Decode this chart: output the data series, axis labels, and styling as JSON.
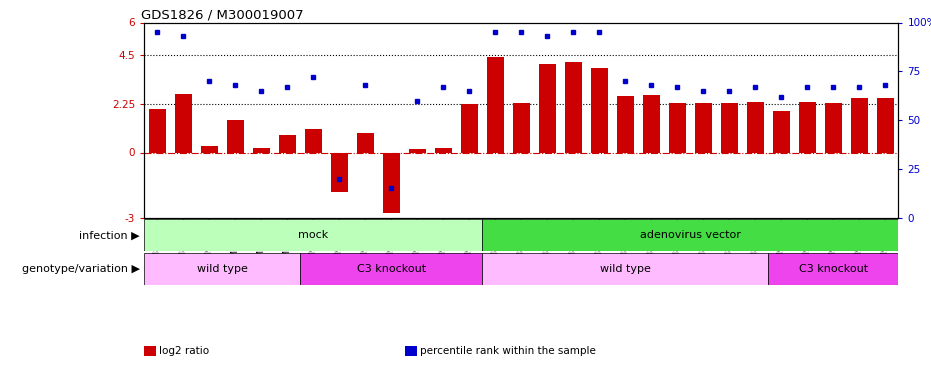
{
  "title": "GDS1826 / M300019007",
  "samples": [
    "GSM87316",
    "GSM87317",
    "GSM93998",
    "GSM93999",
    "GSM94000",
    "GSM94001",
    "GSM93633",
    "GSM93634",
    "GSM93651",
    "GSM93652",
    "GSM93653",
    "GSM93654",
    "GSM93657",
    "GSM86643",
    "GSM87306",
    "GSM87307",
    "GSM87308",
    "GSM87309",
    "GSM87310",
    "GSM87311",
    "GSM87312",
    "GSM87313",
    "GSM87314",
    "GSM87315",
    "GSM93655",
    "GSM93656",
    "GSM93658",
    "GSM93659",
    "GSM93660"
  ],
  "log2_ratio": [
    2.0,
    2.7,
    0.3,
    1.5,
    0.2,
    0.8,
    1.1,
    -1.8,
    0.9,
    -2.8,
    0.15,
    0.2,
    2.25,
    4.4,
    2.3,
    4.1,
    4.2,
    3.9,
    2.6,
    2.65,
    2.3,
    2.3,
    2.3,
    2.35,
    1.9,
    2.35,
    2.3,
    2.5,
    2.5
  ],
  "percentile_rank": [
    95,
    93,
    70,
    68,
    65,
    67,
    72,
    20,
    68,
    15,
    60,
    67,
    65,
    95,
    95,
    93,
    95,
    95,
    70,
    68,
    67,
    65,
    65,
    67,
    62,
    67,
    67,
    67,
    68
  ],
  "bar_color": "#cc0000",
  "dot_color": "#0000cc",
  "ylim": [
    -3,
    6
  ],
  "yticks_left": [
    -3,
    0,
    2.25,
    4.5,
    6
  ],
  "ytick_labels_left": [
    "-3",
    "0",
    "2.25",
    "4.5",
    "6"
  ],
  "yticks_right": [
    0,
    25,
    50,
    75,
    100
  ],
  "ytick_labels_right": [
    "0",
    "25",
    "50",
    "75",
    "100%"
  ],
  "hline_y": [
    2.25,
    4.5
  ],
  "hline_style": "dotted",
  "hline_color": "black",
  "zero_line_color": "#cc0000",
  "zero_line_style": "dashdot",
  "infection_groups": [
    {
      "label": "mock",
      "start": 0,
      "end": 13,
      "color": "#bbffbb"
    },
    {
      "label": "adenovirus vector",
      "start": 13,
      "end": 29,
      "color": "#44dd44"
    }
  ],
  "genotype_groups": [
    {
      "label": "wild type",
      "start": 0,
      "end": 6,
      "color": "#ffbbff"
    },
    {
      "label": "C3 knockout",
      "start": 6,
      "end": 13,
      "color": "#ee44ee"
    },
    {
      "label": "wild type",
      "start": 13,
      "end": 24,
      "color": "#ffbbff"
    },
    {
      "label": "C3 knockout",
      "start": 24,
      "end": 29,
      "color": "#ee44ee"
    }
  ],
  "infection_label": "infection",
  "genotype_label": "genotype/variation",
  "legend_items": [
    {
      "label": "log2 ratio",
      "color": "#cc0000"
    },
    {
      "label": "percentile rank within the sample",
      "color": "#0000cc"
    }
  ]
}
